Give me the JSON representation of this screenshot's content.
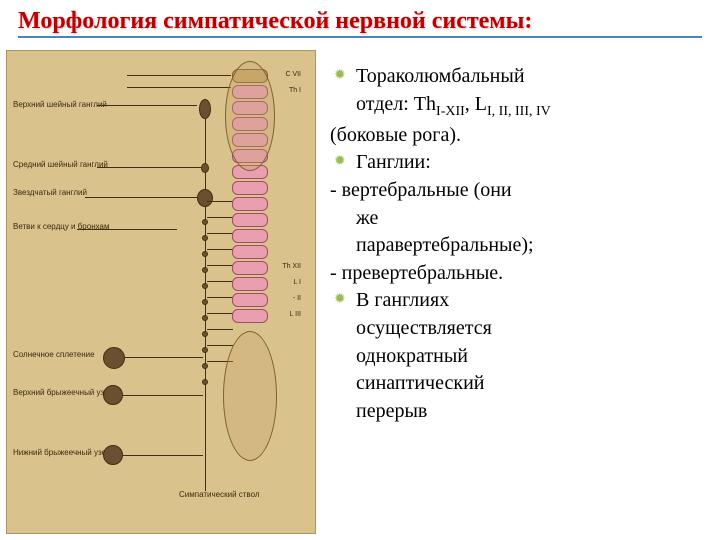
{
  "title": "Морфология симпатической нервной системы:",
  "colors": {
    "title_color": "#c00000",
    "underline_color": "#4f81bd",
    "bullet_color": "#9bbb59",
    "diagram_bg": "#d9c28b",
    "segment_pink": "#e8a0b0",
    "text_color": "#000000",
    "background": "#ffffff"
  },
  "typography": {
    "title_fontsize": 24,
    "body_fontsize": 20,
    "diagram_label_fontsize": 8
  },
  "text_lines": [
    {
      "type": "bullet",
      "html": "Тораколюмбальный"
    },
    {
      "type": "bullet-cont",
      "html": "отдел: Th<sub>I-XII</sub>, L<sub>I, II, III, IV</sub>"
    },
    {
      "type": "plain",
      "html": "(боковые рога)."
    },
    {
      "type": "bullet",
      "html": "Ганглии:"
    },
    {
      "type": "dash",
      "html": "- вертебральные (они"
    },
    {
      "type": "dash-cont",
      "html": "же"
    },
    {
      "type": "dash-cont",
      "html": "паравертебральные);"
    },
    {
      "type": "dash",
      "html": "- превертебральные."
    },
    {
      "type": "bullet",
      "html": "В ганглиях"
    },
    {
      "type": "bullet-cont",
      "html": "осуществляется"
    },
    {
      "type": "bullet-cont",
      "html": "однократный"
    },
    {
      "type": "bullet-cont",
      "html": "синаптический"
    },
    {
      "type": "bullet-cont-cut",
      "html": "перерыв"
    }
  ],
  "diagram": {
    "labels": {
      "top_ganglion": "Верхний шейный ганглий",
      "mid_ganglion": "Средний шейный ганглий",
      "stellate": "Звездчатый ганглий",
      "heart_branch": "Ветви к сердцу и бронхам",
      "solar": "Солнечное сплетение",
      "sup_mesenteric": "Верхний брыжеечный узел",
      "inf_mesenteric": "Нижний брыжеечный узел",
      "symp_trunk": "Симпатический ствол"
    },
    "segment_labels": [
      "C VII",
      "Th I",
      "",
      "",
      "",
      "",
      "",
      "",
      "",
      "",
      "",
      "",
      "Th XII",
      "L I",
      "- II",
      "L III"
    ],
    "pink_start_index": 1,
    "pink_end_index": 15
  }
}
